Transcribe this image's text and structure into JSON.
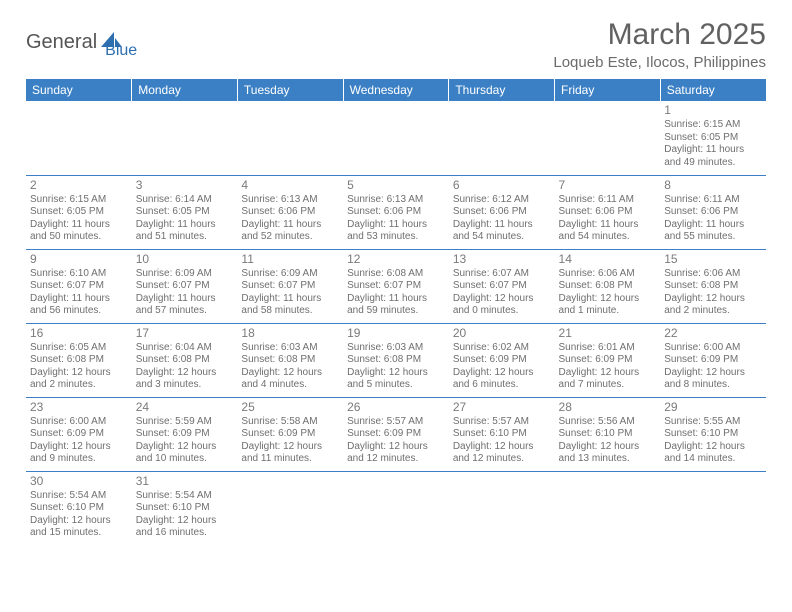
{
  "logo": {
    "part1": "General",
    "part2": "Blue",
    "shape_color": "#2e6fb0"
  },
  "title": "March 2025",
  "location": "Loqueb Este, Ilocos, Philippines",
  "header_bg": "#3b80c4",
  "header_fg": "#ffffff",
  "divider_color": "#3b80c4",
  "text_color": "#6f6f6f",
  "days": [
    "Sunday",
    "Monday",
    "Tuesday",
    "Wednesday",
    "Thursday",
    "Friday",
    "Saturday"
  ],
  "weeks": [
    [
      null,
      null,
      null,
      null,
      null,
      null,
      {
        "n": "1",
        "sr": "Sunrise: 6:15 AM",
        "ss": "Sunset: 6:05 PM",
        "dl1": "Daylight: 11 hours",
        "dl2": "and 49 minutes."
      }
    ],
    [
      {
        "n": "2",
        "sr": "Sunrise: 6:15 AM",
        "ss": "Sunset: 6:05 PM",
        "dl1": "Daylight: 11 hours",
        "dl2": "and 50 minutes."
      },
      {
        "n": "3",
        "sr": "Sunrise: 6:14 AM",
        "ss": "Sunset: 6:05 PM",
        "dl1": "Daylight: 11 hours",
        "dl2": "and 51 minutes."
      },
      {
        "n": "4",
        "sr": "Sunrise: 6:13 AM",
        "ss": "Sunset: 6:06 PM",
        "dl1": "Daylight: 11 hours",
        "dl2": "and 52 minutes."
      },
      {
        "n": "5",
        "sr": "Sunrise: 6:13 AM",
        "ss": "Sunset: 6:06 PM",
        "dl1": "Daylight: 11 hours",
        "dl2": "and 53 minutes."
      },
      {
        "n": "6",
        "sr": "Sunrise: 6:12 AM",
        "ss": "Sunset: 6:06 PM",
        "dl1": "Daylight: 11 hours",
        "dl2": "and 54 minutes."
      },
      {
        "n": "7",
        "sr": "Sunrise: 6:11 AM",
        "ss": "Sunset: 6:06 PM",
        "dl1": "Daylight: 11 hours",
        "dl2": "and 54 minutes."
      },
      {
        "n": "8",
        "sr": "Sunrise: 6:11 AM",
        "ss": "Sunset: 6:06 PM",
        "dl1": "Daylight: 11 hours",
        "dl2": "and 55 minutes."
      }
    ],
    [
      {
        "n": "9",
        "sr": "Sunrise: 6:10 AM",
        "ss": "Sunset: 6:07 PM",
        "dl1": "Daylight: 11 hours",
        "dl2": "and 56 minutes."
      },
      {
        "n": "10",
        "sr": "Sunrise: 6:09 AM",
        "ss": "Sunset: 6:07 PM",
        "dl1": "Daylight: 11 hours",
        "dl2": "and 57 minutes."
      },
      {
        "n": "11",
        "sr": "Sunrise: 6:09 AM",
        "ss": "Sunset: 6:07 PM",
        "dl1": "Daylight: 11 hours",
        "dl2": "and 58 minutes."
      },
      {
        "n": "12",
        "sr": "Sunrise: 6:08 AM",
        "ss": "Sunset: 6:07 PM",
        "dl1": "Daylight: 11 hours",
        "dl2": "and 59 minutes."
      },
      {
        "n": "13",
        "sr": "Sunrise: 6:07 AM",
        "ss": "Sunset: 6:07 PM",
        "dl1": "Daylight: 12 hours",
        "dl2": "and 0 minutes."
      },
      {
        "n": "14",
        "sr": "Sunrise: 6:06 AM",
        "ss": "Sunset: 6:08 PM",
        "dl1": "Daylight: 12 hours",
        "dl2": "and 1 minute."
      },
      {
        "n": "15",
        "sr": "Sunrise: 6:06 AM",
        "ss": "Sunset: 6:08 PM",
        "dl1": "Daylight: 12 hours",
        "dl2": "and 2 minutes."
      }
    ],
    [
      {
        "n": "16",
        "sr": "Sunrise: 6:05 AM",
        "ss": "Sunset: 6:08 PM",
        "dl1": "Daylight: 12 hours",
        "dl2": "and 2 minutes."
      },
      {
        "n": "17",
        "sr": "Sunrise: 6:04 AM",
        "ss": "Sunset: 6:08 PM",
        "dl1": "Daylight: 12 hours",
        "dl2": "and 3 minutes."
      },
      {
        "n": "18",
        "sr": "Sunrise: 6:03 AM",
        "ss": "Sunset: 6:08 PM",
        "dl1": "Daylight: 12 hours",
        "dl2": "and 4 minutes."
      },
      {
        "n": "19",
        "sr": "Sunrise: 6:03 AM",
        "ss": "Sunset: 6:08 PM",
        "dl1": "Daylight: 12 hours",
        "dl2": "and 5 minutes."
      },
      {
        "n": "20",
        "sr": "Sunrise: 6:02 AM",
        "ss": "Sunset: 6:09 PM",
        "dl1": "Daylight: 12 hours",
        "dl2": "and 6 minutes."
      },
      {
        "n": "21",
        "sr": "Sunrise: 6:01 AM",
        "ss": "Sunset: 6:09 PM",
        "dl1": "Daylight: 12 hours",
        "dl2": "and 7 minutes."
      },
      {
        "n": "22",
        "sr": "Sunrise: 6:00 AM",
        "ss": "Sunset: 6:09 PM",
        "dl1": "Daylight: 12 hours",
        "dl2": "and 8 minutes."
      }
    ],
    [
      {
        "n": "23",
        "sr": "Sunrise: 6:00 AM",
        "ss": "Sunset: 6:09 PM",
        "dl1": "Daylight: 12 hours",
        "dl2": "and 9 minutes."
      },
      {
        "n": "24",
        "sr": "Sunrise: 5:59 AM",
        "ss": "Sunset: 6:09 PM",
        "dl1": "Daylight: 12 hours",
        "dl2": "and 10 minutes."
      },
      {
        "n": "25",
        "sr": "Sunrise: 5:58 AM",
        "ss": "Sunset: 6:09 PM",
        "dl1": "Daylight: 12 hours",
        "dl2": "and 11 minutes."
      },
      {
        "n": "26",
        "sr": "Sunrise: 5:57 AM",
        "ss": "Sunset: 6:09 PM",
        "dl1": "Daylight: 12 hours",
        "dl2": "and 12 minutes."
      },
      {
        "n": "27",
        "sr": "Sunrise: 5:57 AM",
        "ss": "Sunset: 6:10 PM",
        "dl1": "Daylight: 12 hours",
        "dl2": "and 12 minutes."
      },
      {
        "n": "28",
        "sr": "Sunrise: 5:56 AM",
        "ss": "Sunset: 6:10 PM",
        "dl1": "Daylight: 12 hours",
        "dl2": "and 13 minutes."
      },
      {
        "n": "29",
        "sr": "Sunrise: 5:55 AM",
        "ss": "Sunset: 6:10 PM",
        "dl1": "Daylight: 12 hours",
        "dl2": "and 14 minutes."
      }
    ],
    [
      {
        "n": "30",
        "sr": "Sunrise: 5:54 AM",
        "ss": "Sunset: 6:10 PM",
        "dl1": "Daylight: 12 hours",
        "dl2": "and 15 minutes."
      },
      {
        "n": "31",
        "sr": "Sunrise: 5:54 AM",
        "ss": "Sunset: 6:10 PM",
        "dl1": "Daylight: 12 hours",
        "dl2": "and 16 minutes."
      },
      null,
      null,
      null,
      null,
      null
    ]
  ]
}
